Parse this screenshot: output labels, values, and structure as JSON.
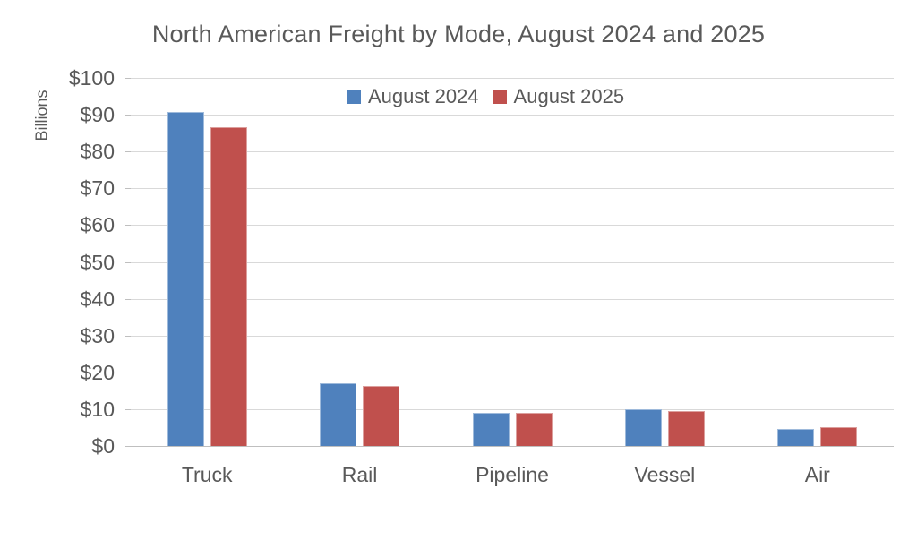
{
  "chart_data": {
    "type": "bar",
    "title": "North American Freight by Mode, August 2024 and 2025",
    "ylabel": "Billions",
    "xlabel": "",
    "categories": [
      "Truck",
      "Rail",
      "Pipeline",
      "Vessel",
      "Air"
    ],
    "series": [
      {
        "name": "August 2024",
        "color": "#4F81BD",
        "values": [
          90.7,
          17.0,
          8.9,
          10.0,
          4.7
        ]
      },
      {
        "name": "August 2025",
        "color": "#C0504D",
        "values": [
          86.5,
          16.4,
          9.1,
          9.5,
          5.0
        ]
      }
    ],
    "y_axis": {
      "min": 0,
      "max": 100,
      "step": 10,
      "tick_prefix": "$",
      "tick_labels": [
        "$0",
        "$10",
        "$20",
        "$30",
        "$40",
        "$50",
        "$60",
        "$70",
        "$80",
        "$90",
        "$100"
      ]
    },
    "legend_position": "top-center",
    "grid": true
  },
  "colors": {
    "text": "#595959",
    "gridline": "#D9D9D9",
    "axis_line": "#BFBFBF",
    "background": "#FFFFFF",
    "series_blue": "#4F81BD",
    "series_red": "#C0504D"
  }
}
